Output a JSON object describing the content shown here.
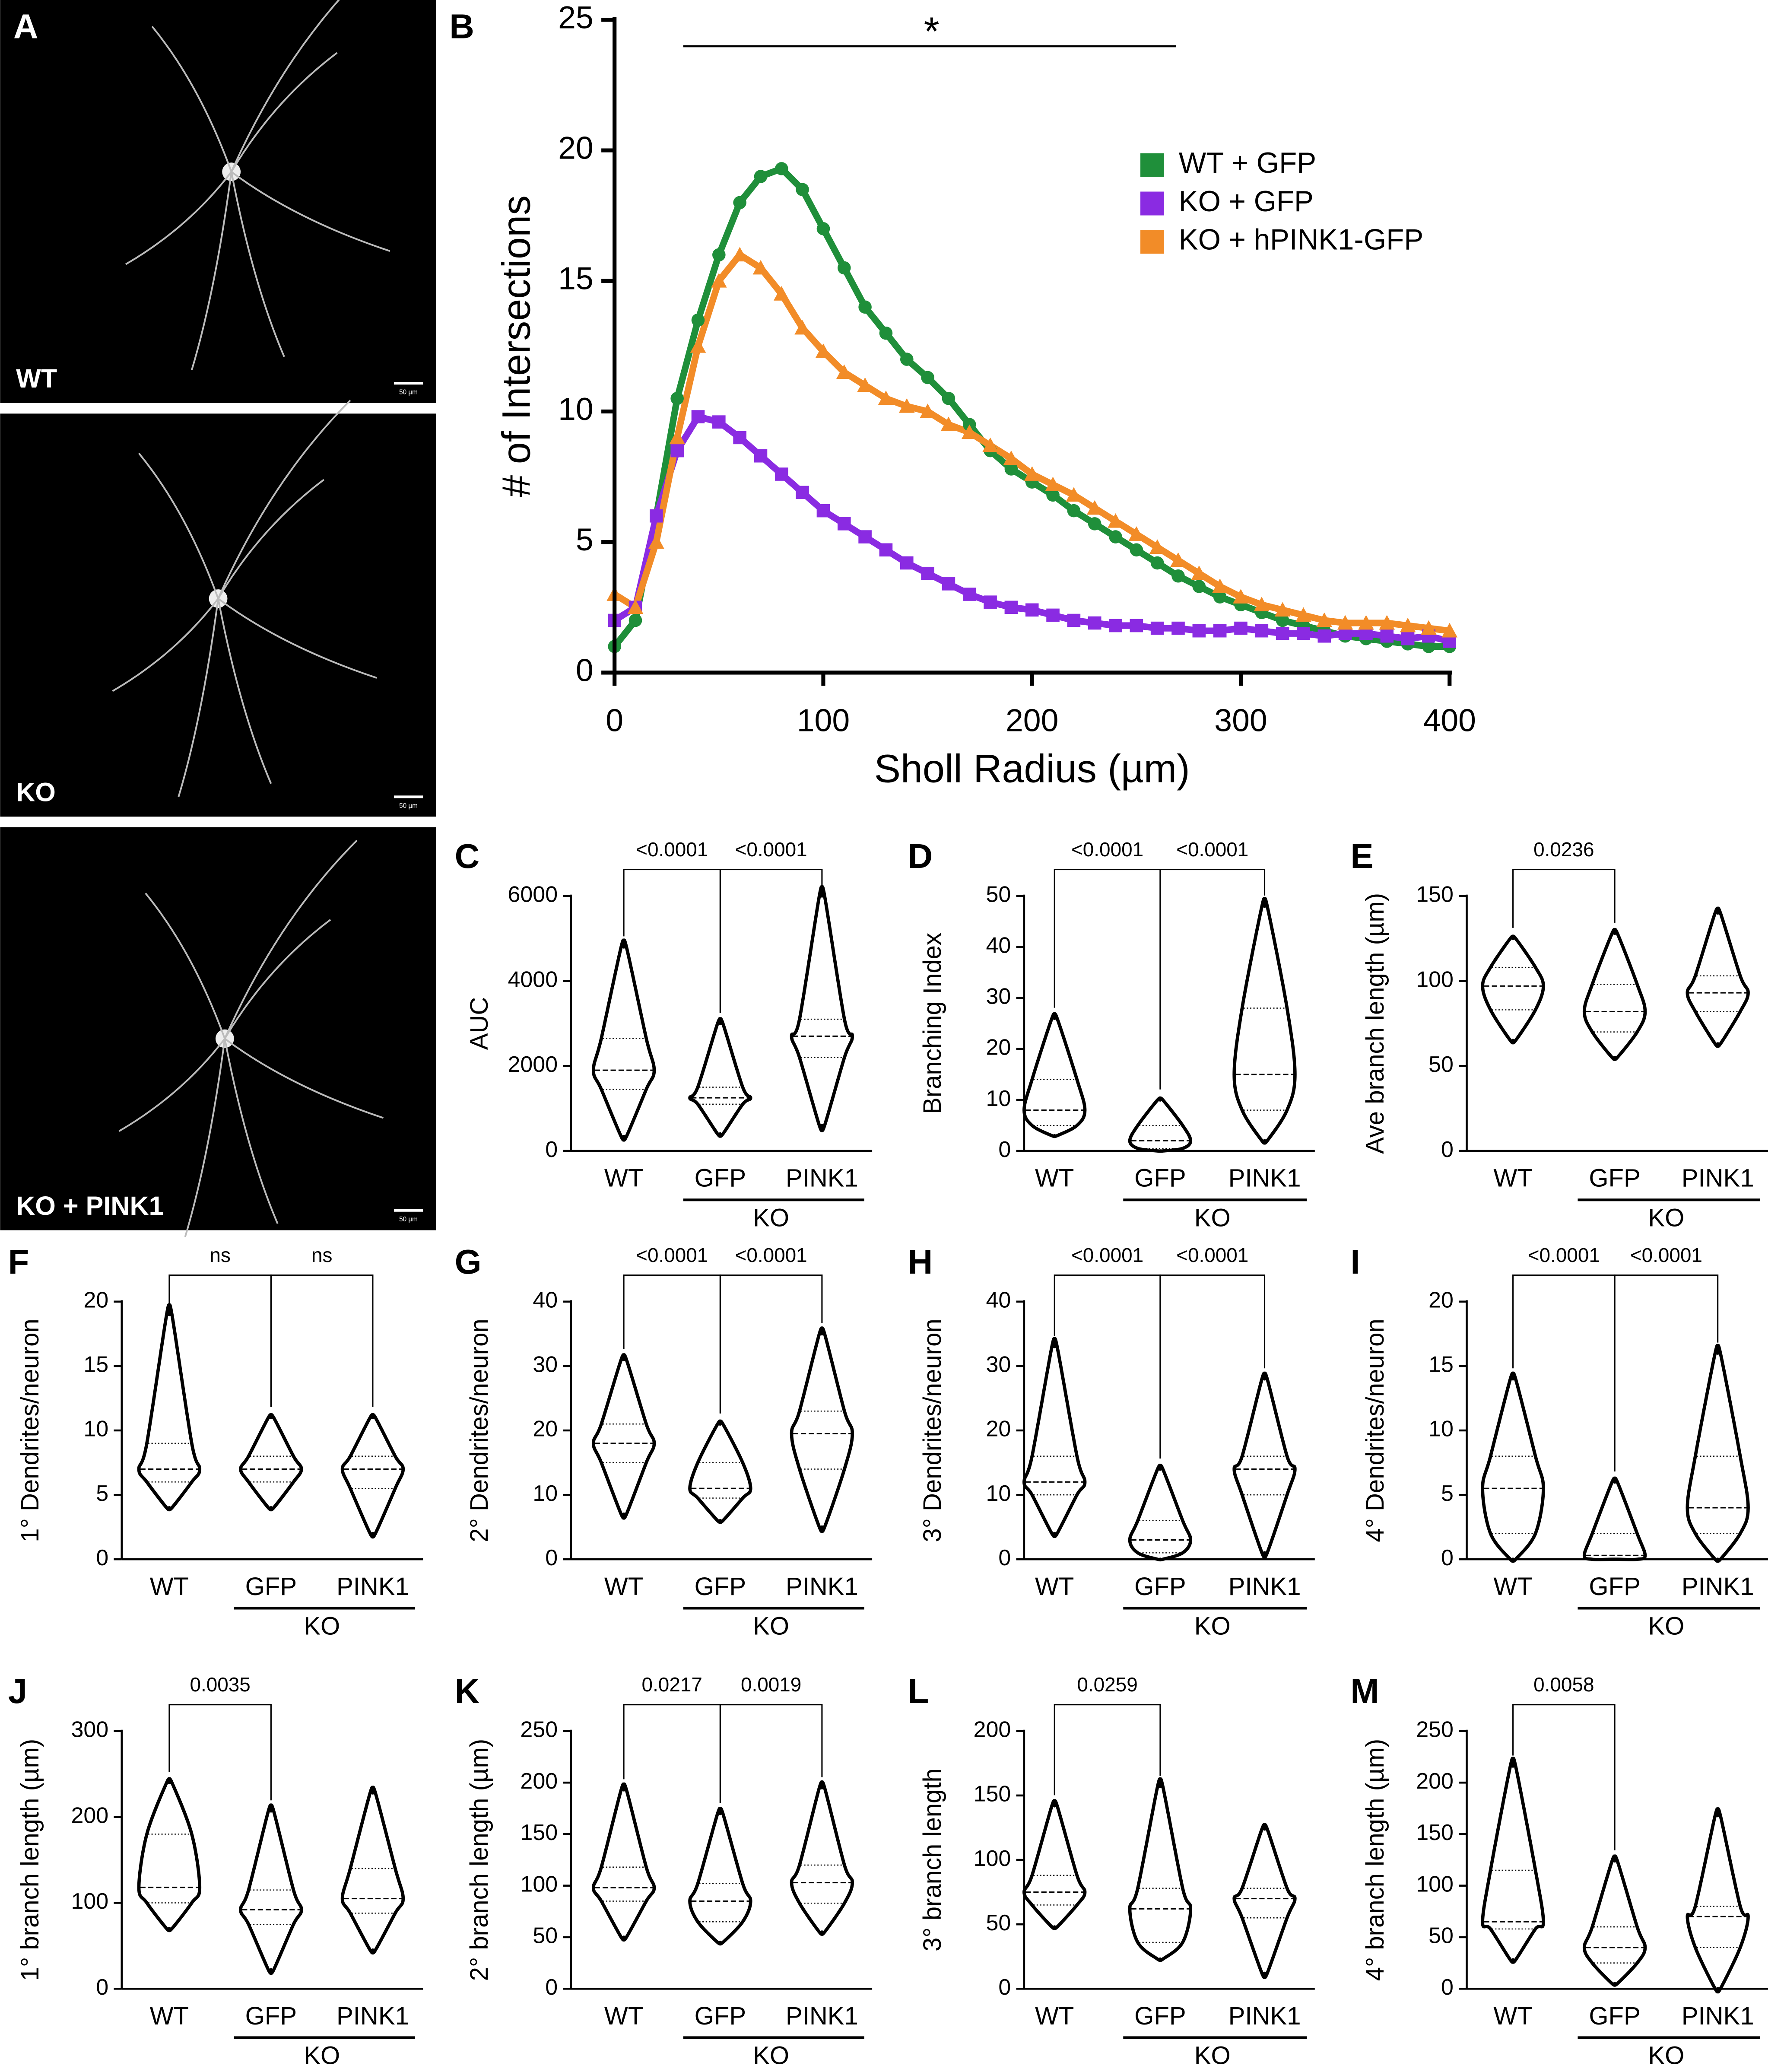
{
  "panel_a": {
    "panel": "A",
    "images": [
      {
        "label": "WT",
        "scale_bar": "50 µm"
      },
      {
        "label": "KO",
        "scale_bar": "50 µm"
      },
      {
        "label": "KO + PINK1",
        "scale_bar": "50 µm"
      }
    ]
  },
  "chart_data": [
    {
      "type": "line",
      "panel": "B",
      "annotation": "*",
      "xlabel": "Sholl Radius (µm)",
      "ylabel": "# of Intersections",
      "x": [
        0,
        10,
        20,
        30,
        40,
        50,
        60,
        70,
        80,
        90,
        100,
        110,
        120,
        130,
        140,
        150,
        160,
        170,
        180,
        190,
        200,
        210,
        220,
        230,
        240,
        250,
        260,
        270,
        280,
        290,
        300,
        310,
        320,
        330,
        340,
        350,
        360,
        370,
        380,
        390,
        400
      ],
      "xlim": [
        0,
        400
      ],
      "xticks": [
        0,
        100,
        200,
        300,
        400
      ],
      "ylim": [
        0,
        25
      ],
      "yticks": [
        0,
        5,
        10,
        15,
        20,
        25
      ],
      "legend": "upper right",
      "series": [
        {
          "name": "WT + GFP",
          "color": "#1f8f3a",
          "marker": "circle",
          "values": [
            1,
            2,
            6,
            10.5,
            13.5,
            16,
            18,
            19,
            19.3,
            18.5,
            17,
            15.5,
            14,
            13,
            12,
            11.3,
            10.5,
            9.5,
            8.5,
            7.8,
            7.3,
            6.8,
            6.2,
            5.7,
            5.2,
            4.7,
            4.2,
            3.7,
            3.3,
            2.9,
            2.6,
            2.3,
            2.0,
            1.8,
            1.6,
            1.4,
            1.3,
            1.2,
            1.1,
            1.0,
            1.0
          ]
        },
        {
          "name": "KO + GFP",
          "color": "#8a2be2",
          "marker": "square",
          "values": [
            2,
            2.5,
            6,
            8.5,
            9.8,
            9.6,
            9,
            8.3,
            7.6,
            6.9,
            6.2,
            5.7,
            5.2,
            4.7,
            4.2,
            3.8,
            3.4,
            3.0,
            2.7,
            2.5,
            2.4,
            2.2,
            2.0,
            1.9,
            1.8,
            1.8,
            1.7,
            1.7,
            1.6,
            1.6,
            1.7,
            1.6,
            1.5,
            1.5,
            1.4,
            1.5,
            1.5,
            1.4,
            1.3,
            1.4,
            1.2
          ]
        },
        {
          "name": "KO + hPINK1-GFP",
          "color": "#f28c28",
          "marker": "triangle",
          "values": [
            3,
            2.5,
            5,
            9,
            12.5,
            15,
            16,
            15.5,
            14.5,
            13.2,
            12.3,
            11.5,
            11,
            10.5,
            10.2,
            10,
            9.5,
            9.2,
            8.7,
            8.2,
            7.6,
            7.2,
            6.8,
            6.3,
            5.8,
            5.3,
            4.8,
            4.3,
            3.8,
            3.3,
            2.9,
            2.6,
            2.4,
            2.2,
            2.0,
            1.9,
            1.9,
            1.9,
            1.8,
            1.7,
            1.6
          ]
        }
      ]
    },
    {
      "type": "violin",
      "panel": "C",
      "ylabel": "AUC",
      "categories": [
        "WT",
        "GFP",
        "PINK1"
      ],
      "group_label": "KO",
      "ylim": [
        0,
        6000
      ],
      "yticks": [
        0,
        2000,
        4000,
        6000
      ],
      "groups": [
        {
          "min": 340,
          "q1": 1450,
          "median": 1900,
          "q3": 2650,
          "max": 4800
        },
        {
          "min": 400,
          "q1": 1100,
          "median": 1250,
          "q3": 1500,
          "max": 3000
        },
        {
          "min": 600,
          "q1": 2200,
          "median": 2700,
          "q3": 3100,
          "max": 6000
        }
      ],
      "comparisons": [
        {
          "from": "WT",
          "to": "GFP",
          "label": "<0.0001"
        },
        {
          "from": "GFP",
          "to": "PINK1",
          "label": "<0.0001"
        }
      ]
    },
    {
      "type": "violin",
      "panel": "D",
      "ylabel": "Branching Index",
      "categories": [
        "WT",
        "GFP",
        "PINK1"
      ],
      "group_label": "KO",
      "ylim": [
        0,
        50
      ],
      "yticks": [
        0,
        10,
        20,
        30,
        40,
        50
      ],
      "groups": [
        {
          "min": 3,
          "q1": 5,
          "median": 8,
          "q3": 14,
          "max": 26
        },
        {
          "min": 0,
          "q1": 0.5,
          "median": 2,
          "q3": 5,
          "max": 10
        },
        {
          "min": 2,
          "q1": 8,
          "median": 15,
          "q3": 28,
          "max": 48
        }
      ],
      "comparisons": [
        {
          "from": "WT",
          "to": "GFP",
          "label": "<0.0001"
        },
        {
          "from": "GFP",
          "to": "PINK1",
          "label": "<0.0001"
        }
      ]
    },
    {
      "type": "violin",
      "panel": "E",
      "ylabel": "Ave branch length (µm)",
      "categories": [
        "WT",
        "GFP",
        "PINK1"
      ],
      "group_label": "KO",
      "ylim": [
        0,
        150
      ],
      "yticks": [
        0,
        50,
        100,
        150
      ],
      "groups": [
        {
          "min": 65,
          "q1": 83,
          "median": 97,
          "q3": 108,
          "max": 125
        },
        {
          "min": 55,
          "q1": 70,
          "median": 82,
          "q3": 98,
          "max": 128
        },
        {
          "min": 63,
          "q1": 82,
          "median": 93,
          "q3": 103,
          "max": 140
        }
      ],
      "comparisons": [
        {
          "from": "WT",
          "to": "GFP",
          "label": "0.0236"
        }
      ]
    },
    {
      "type": "violin",
      "panel": "F",
      "ylabel": "1° Dendrites/neuron",
      "categories": [
        "WT",
        "GFP",
        "PINK1"
      ],
      "group_label": "KO",
      "ylim": [
        0,
        20
      ],
      "yticks": [
        0,
        5,
        10,
        15,
        20
      ],
      "groups": [
        {
          "min": 4,
          "q1": 6,
          "median": 7,
          "q3": 9,
          "max": 19
        },
        {
          "min": 4,
          "q1": 6,
          "median": 7,
          "q3": 8,
          "max": 11
        },
        {
          "min": 2,
          "q1": 5.5,
          "median": 7,
          "q3": 8,
          "max": 11
        }
      ],
      "comparisons": [
        {
          "from": "WT",
          "to": "GFP",
          "label": "ns"
        },
        {
          "from": "GFP",
          "to": "PINK1",
          "label": "ns"
        }
      ]
    },
    {
      "type": "violin",
      "panel": "G",
      "ylabel": "2° Dendrites/neuron",
      "categories": [
        "WT",
        "GFP",
        "PINK1"
      ],
      "group_label": "KO",
      "ylim": [
        0,
        40
      ],
      "yticks": [
        0,
        10,
        20,
        30,
        40
      ],
      "groups": [
        {
          "min": 7,
          "q1": 15,
          "median": 18,
          "q3": 21,
          "max": 31
        },
        {
          "min": 6,
          "q1": 9.5,
          "median": 11,
          "q3": 15,
          "max": 21
        },
        {
          "min": 5,
          "q1": 14,
          "median": 19.5,
          "q3": 23,
          "max": 35
        }
      ],
      "comparisons": [
        {
          "from": "WT",
          "to": "GFP",
          "label": "<0.0001"
        },
        {
          "from": "GFP",
          "to": "PINK1",
          "label": "<0.0001"
        }
      ]
    },
    {
      "type": "violin",
      "panel": "H",
      "ylabel": "3° Dendrites/neuron",
      "categories": [
        "WT",
        "GFP",
        "PINK1"
      ],
      "group_label": "KO",
      "ylim": [
        0,
        40
      ],
      "yticks": [
        0,
        10,
        20,
        30,
        40
      ],
      "groups": [
        {
          "min": 4,
          "q1": 10,
          "median": 12,
          "q3": 16,
          "max": 33
        },
        {
          "min": 0,
          "q1": 1,
          "median": 3,
          "q3": 6,
          "max": 14
        },
        {
          "min": 1,
          "q1": 10,
          "median": 14,
          "q3": 16,
          "max": 28
        }
      ],
      "comparisons": [
        {
          "from": "WT",
          "to": "GFP",
          "label": "<0.0001"
        },
        {
          "from": "GFP",
          "to": "PINK1",
          "label": "<0.0001"
        }
      ]
    },
    {
      "type": "violin",
      "panel": "I",
      "ylabel": "4° Dendrites/neuron",
      "categories": [
        "WT",
        "GFP",
        "PINK1"
      ],
      "group_label": "KO",
      "ylim": [
        0,
        20
      ],
      "yticks": [
        0,
        5,
        10,
        15,
        20
      ],
      "groups": [
        {
          "min": 0,
          "q1": 2,
          "median": 5.5,
          "q3": 8,
          "max": 14
        },
        {
          "min": 0,
          "q1": 0,
          "median": 0.3,
          "q3": 2,
          "max": 6
        },
        {
          "min": 0,
          "q1": 2,
          "median": 4,
          "q3": 8,
          "max": 16
        }
      ],
      "comparisons": [
        {
          "from": "WT",
          "to": "GFP",
          "label": "<0.0001"
        },
        {
          "from": "GFP",
          "to": "PINK1",
          "label": "<0.0001"
        }
      ]
    },
    {
      "type": "violin",
      "panel": "J",
      "ylabel": "1° branch length (µm)",
      "categories": [
        "WT",
        "GFP",
        "PINK1"
      ],
      "group_label": "KO",
      "ylim": [
        0,
        300
      ],
      "yticks": [
        0,
        100,
        200,
        300
      ],
      "groups": [
        {
          "min": 70,
          "q1": 100,
          "median": 118,
          "q3": 180,
          "max": 240
        },
        {
          "min": 22,
          "q1": 75,
          "median": 92,
          "q3": 115,
          "max": 207
        },
        {
          "min": 45,
          "q1": 88,
          "median": 105,
          "q3": 140,
          "max": 228
        }
      ],
      "comparisons": [
        {
          "from": "WT",
          "to": "GFP",
          "label": "0.0035"
        }
      ]
    },
    {
      "type": "violin",
      "panel": "K",
      "ylabel": "2° branch length (µm)",
      "categories": [
        "WT",
        "GFP",
        "PINK1"
      ],
      "group_label": "KO",
      "ylim": [
        0,
        250
      ],
      "yticks": [
        0,
        50,
        100,
        150,
        200,
        250
      ],
      "groups": [
        {
          "min": 50,
          "q1": 85,
          "median": 98,
          "q3": 118,
          "max": 193
        },
        {
          "min": 45,
          "q1": 65,
          "median": 85,
          "q3": 102,
          "max": 170
        },
        {
          "min": 55,
          "q1": 83,
          "median": 103,
          "q3": 120,
          "max": 195
        }
      ],
      "comparisons": [
        {
          "from": "WT",
          "to": "GFP",
          "label": "0.0217"
        },
        {
          "from": "GFP",
          "to": "PINK1",
          "label": "0.0019"
        }
      ]
    },
    {
      "type": "violin",
      "panel": "L",
      "ylabel": "3° branch length",
      "categories": [
        "WT",
        "GFP",
        "PINK1"
      ],
      "group_label": "KO",
      "ylim": [
        0,
        200
      ],
      "yticks": [
        0,
        50,
        100,
        150,
        200
      ],
      "groups": [
        {
          "min": 48,
          "q1": 65,
          "median": 75,
          "q3": 88,
          "max": 142
        },
        {
          "min": 23,
          "q1": 36,
          "median": 62,
          "q3": 78,
          "max": 157
        },
        {
          "min": 12,
          "q1": 55,
          "median": 70,
          "q3": 78,
          "max": 124
        }
      ],
      "comparisons": [
        {
          "from": "WT",
          "to": "GFP",
          "label": "0.0259"
        }
      ]
    },
    {
      "type": "violin",
      "panel": "M",
      "ylabel": "4° branch length (µm)",
      "categories": [
        "WT",
        "GFP",
        "PINK1"
      ],
      "group_label": "KO",
      "ylim": [
        0,
        250
      ],
      "yticks": [
        0,
        50,
        100,
        150,
        200,
        250
      ],
      "groups": [
        {
          "min": 28,
          "q1": 58,
          "median": 65,
          "q3": 115,
          "max": 216
        },
        {
          "min": 5,
          "q1": 25,
          "median": 40,
          "q3": 60,
          "max": 124
        },
        {
          "min": 0,
          "q1": 40,
          "median": 70,
          "q3": 80,
          "max": 168
        }
      ],
      "comparisons": [
        {
          "from": "WT",
          "to": "GFP",
          "label": "0.0058"
        }
      ]
    }
  ]
}
